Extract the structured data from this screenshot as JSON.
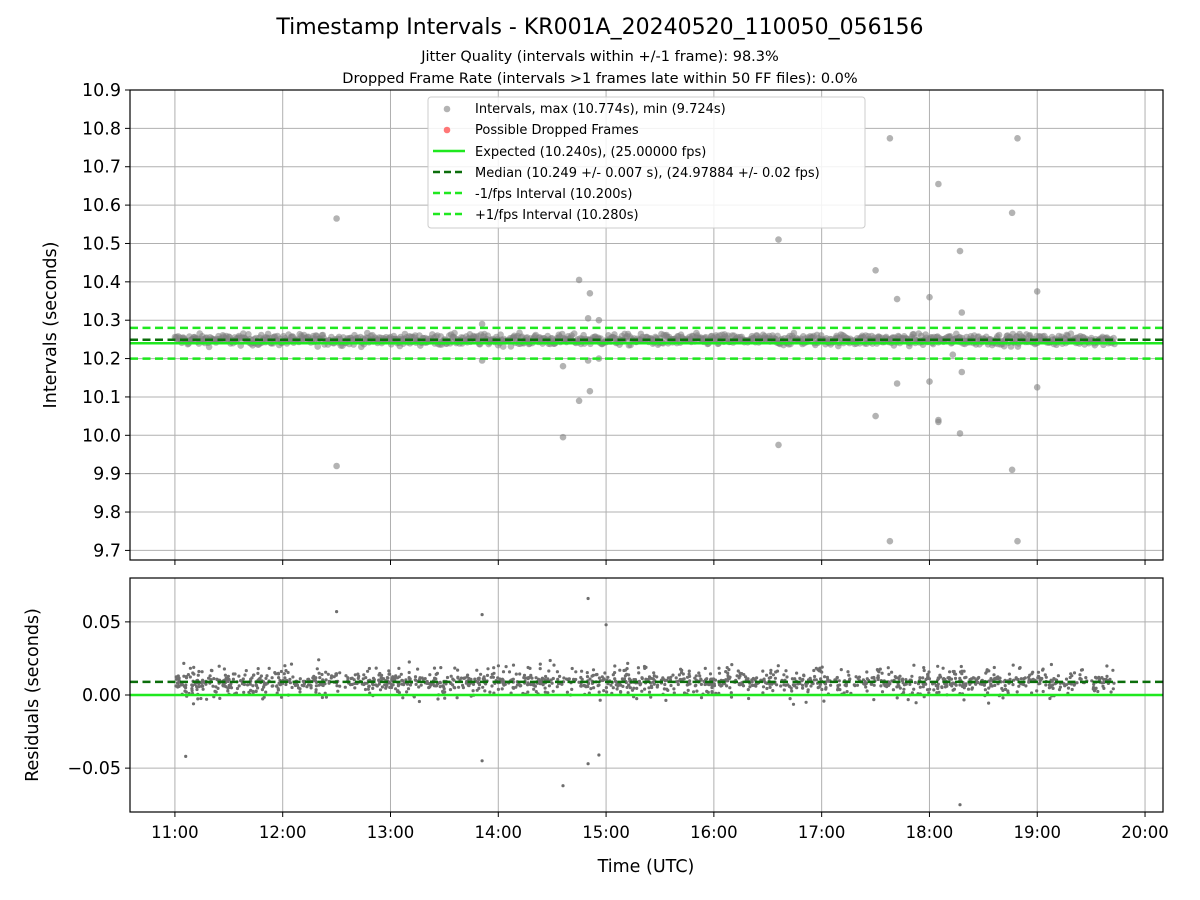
{
  "chart_data": [
    {
      "type": "scatter",
      "title": "Timestamp Intervals - KR001A_20240520_110050_056156",
      "subtitle_lines": [
        "Jitter Quality (intervals within +/-1 frame): 98.3%",
        "Dropped Frame Rate (intervals >1 frames late within 50 FF files): 0.0%"
      ],
      "xlabel": "",
      "ylabel": "Intervals (seconds)",
      "xlim": [
        "10:35",
        "20:10"
      ],
      "ylim": [
        9.675,
        10.9
      ],
      "yticks": [
        "9.7",
        "9.8",
        "9.9",
        "10.0",
        "10.1",
        "10.2",
        "10.3",
        "10.4",
        "10.5",
        "10.6",
        "10.7",
        "10.8",
        "10.9"
      ],
      "grid": true,
      "legend_placement": "upper center",
      "legend": [
        "Intervals, max (10.774s), min (9.724s)",
        "Possible Dropped Frames",
        "Expected (10.240s), (25.00000 fps)",
        "Median (10.249 +/- 0.007 s), (24.97884 +/- 0.02 fps)",
        "-1/fps Interval (10.200s)",
        "+1/fps Interval (10.280s)"
      ],
      "reference_lines": [
        {
          "name": "Expected",
          "y": 10.24,
          "style": "solid",
          "color": "#1fe81f"
        },
        {
          "name": "Median",
          "y": 10.249,
          "style": "dashed",
          "color": "#0b6e0b"
        },
        {
          "name": "-1/fps Interval",
          "y": 10.2,
          "style": "dashed",
          "color": "#1fe81f"
        },
        {
          "name": "+1/fps Interval",
          "y": 10.28,
          "style": "dashed",
          "color": "#1fe81f"
        }
      ],
      "x_range_of_data": [
        "11:00",
        "19:43"
      ],
      "typical_band": [
        10.21,
        10.28
      ],
      "outliers": [
        {
          "x": "12:30",
          "y": 10.565
        },
        {
          "x": "12:30",
          "y": 9.92
        },
        {
          "x": "13:51",
          "y": 10.29
        },
        {
          "x": "13:51",
          "y": 10.195
        },
        {
          "x": "14:36",
          "y": 10.18
        },
        {
          "x": "14:36",
          "y": 9.995
        },
        {
          "x": "14:45",
          "y": 10.405
        },
        {
          "x": "14:45",
          "y": 10.09
        },
        {
          "x": "14:51",
          "y": 10.37
        },
        {
          "x": "14:51",
          "y": 10.115
        },
        {
          "x": "14:50",
          "y": 10.305
        },
        {
          "x": "14:50",
          "y": 10.195
        },
        {
          "x": "14:56",
          "y": 10.3
        },
        {
          "x": "14:56",
          "y": 10.2
        },
        {
          "x": "16:36",
          "y": 10.51
        },
        {
          "x": "16:36",
          "y": 9.975
        },
        {
          "x": "17:30",
          "y": 10.43
        },
        {
          "x": "17:30",
          "y": 10.05
        },
        {
          "x": "17:38",
          "y": 10.774
        },
        {
          "x": "17:38",
          "y": 9.724
        },
        {
          "x": "17:42",
          "y": 10.355
        },
        {
          "x": "17:42",
          "y": 10.135
        },
        {
          "x": "18:00",
          "y": 10.36
        },
        {
          "x": "18:00",
          "y": 10.14
        },
        {
          "x": "18:05",
          "y": 10.655
        },
        {
          "x": "18:05",
          "y": 10.04
        },
        {
          "x": "18:05",
          "y": 10.035
        },
        {
          "x": "18:13",
          "y": 10.21
        },
        {
          "x": "18:17",
          "y": 10.48
        },
        {
          "x": "18:17",
          "y": 10.005
        },
        {
          "x": "18:18",
          "y": 10.32
        },
        {
          "x": "18:18",
          "y": 10.165
        },
        {
          "x": "18:46",
          "y": 10.58
        },
        {
          "x": "18:46",
          "y": 9.91
        },
        {
          "x": "18:49",
          "y": 10.774
        },
        {
          "x": "18:49",
          "y": 9.724
        },
        {
          "x": "19:00",
          "y": 10.375
        },
        {
          "x": "19:00",
          "y": 10.125
        }
      ]
    },
    {
      "type": "scatter",
      "xlabel": "Time (UTC)",
      "ylabel": "Residuals (seconds)",
      "xlim": [
        "10:35",
        "20:10"
      ],
      "ylim": [
        -0.08,
        0.08
      ],
      "yticks": [
        "−0.05",
        "0.00",
        "0.05"
      ],
      "xticks": [
        "11:00",
        "12:00",
        "13:00",
        "14:00",
        "15:00",
        "16:00",
        "17:00",
        "18:00",
        "19:00",
        "20:00"
      ],
      "grid": true,
      "reference_lines": [
        {
          "name": "Expected",
          "y": 0.0,
          "style": "solid",
          "color": "#1fe81f"
        },
        {
          "name": "Median",
          "y": 0.009,
          "style": "dashed",
          "color": "#0b6e0b"
        }
      ],
      "x_range_of_data": [
        "11:00",
        "19:43"
      ],
      "typical_band": [
        -0.03,
        0.045
      ],
      "outliers": [
        {
          "x": "11:06",
          "y": -0.042
        },
        {
          "x": "12:30",
          "y": 0.057
        },
        {
          "x": "13:51",
          "y": 0.055
        },
        {
          "x": "13:51",
          "y": -0.045
        },
        {
          "x": "14:36",
          "y": -0.062
        },
        {
          "x": "14:50",
          "y": 0.066
        },
        {
          "x": "14:50",
          "y": -0.047
        },
        {
          "x": "14:56",
          "y": -0.041
        },
        {
          "x": "15:00",
          "y": 0.048
        },
        {
          "x": "18:17",
          "y": -0.075
        }
      ]
    }
  ],
  "colors": {
    "points": "#808080",
    "dropped": "#ff5555",
    "expected": "#1fe81f",
    "median": "#0b6e0b",
    "grid": "#b0b0b0"
  }
}
